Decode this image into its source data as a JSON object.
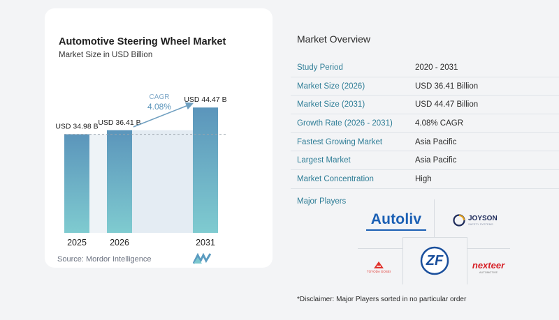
{
  "chart_data": {
    "type": "bar",
    "title": "Automotive Steering Wheel Market",
    "subtitle": "Market Size in USD Billion",
    "categories": [
      "2025",
      "2026",
      "2031"
    ],
    "values": [
      34.98,
      36.41,
      44.47
    ],
    "value_labels": [
      "USD 34.98 B",
      "USD 36.41 B",
      "USD 44.47 B"
    ],
    "cagr_label": "CAGR",
    "cagr_value": "4.08%",
    "ylim": [
      0,
      47
    ],
    "grid": false,
    "colors": {
      "bar_top": "#5b95bb",
      "bar_bottom": "#7fcbd0",
      "shade": "#e4ecf3",
      "arrow": "#6f9fc0"
    }
  },
  "source": "Source:  Mordor Intelligence",
  "overview": {
    "title": "Market Overview",
    "rows": [
      {
        "key": "Study Period",
        "value": "2020 - 2031"
      },
      {
        "key": "Market Size (2026)",
        "value": "USD 36.41 Billion"
      },
      {
        "key": "Market Size (2031)",
        "value": "USD 44.47 Billion"
      },
      {
        "key": "Growth Rate (2026 - 2031)",
        "value": "4.08% CAGR"
      },
      {
        "key": "Fastest Growing Market",
        "value": "Asia Pacific"
      },
      {
        "key": "Largest Market",
        "value": "Asia Pacific"
      },
      {
        "key": "Market Concentration",
        "value": "High"
      }
    ],
    "players_title": "Major Players",
    "players": {
      "autoliv": "Autoliv",
      "joyson": "JOYSON",
      "joyson_sub": "SAFETY SYSTEMS",
      "zf": "ZF",
      "toyoda": "TOYODA GOSEI",
      "nexteer": "nexteer",
      "nexteer_sub": "AUTOMOTIVE"
    },
    "disclaimer": "*Disclaimer: Major Players sorted in no particular order"
  }
}
